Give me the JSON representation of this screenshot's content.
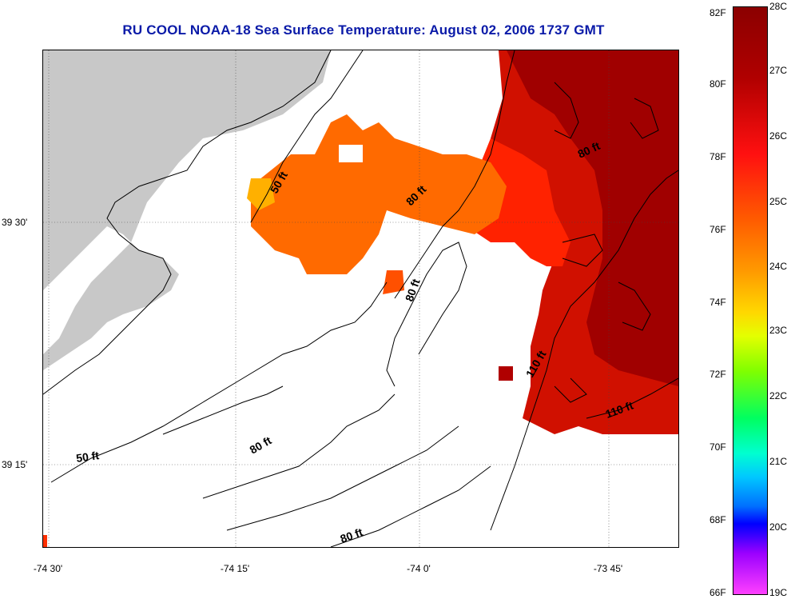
{
  "title": "RU COOL  NOAA-18  Sea Surface Temperature:  August 02, 2006 1737 GMT",
  "x_axis": {
    "ticks": [
      {
        "label": "-74 30'",
        "lon": -74.5
      },
      {
        "label": "-74 15'",
        "lon": -74.25
      },
      {
        "label": "-74 0'",
        "lon": -74.0
      },
      {
        "label": "-73 45'",
        "lon": -73.75
      }
    ]
  },
  "y_axis": {
    "ticks": [
      {
        "label": "39 30'",
        "lat": 39.5
      },
      {
        "label": "39 15'",
        "lat": 39.25
      }
    ]
  },
  "contour_labels": [
    {
      "text": "50 ft",
      "id": "a"
    },
    {
      "text": "80 ft",
      "id": "b"
    },
    {
      "text": "80 ft",
      "id": "c"
    },
    {
      "text": "80 ft",
      "id": "d"
    },
    {
      "text": "110 ft",
      "id": "e"
    },
    {
      "text": "110 ft",
      "id": "f"
    },
    {
      "text": "50 ft",
      "id": "g"
    },
    {
      "text": "80 ft",
      "id": "h"
    },
    {
      "text": "80 ft",
      "id": "i"
    }
  ],
  "colorbar": {
    "fahrenheit": [
      "82F",
      "80F",
      "78F",
      "76F",
      "74F",
      "72F",
      "70F",
      "68F",
      "66F"
    ],
    "celsius": [
      "28C",
      "27C",
      "26C",
      "25C",
      "24C",
      "23C",
      "22C",
      "21C",
      "20C",
      "19C"
    ],
    "colors": {
      "land": "#c8c8c8",
      "warm": "#8b0000",
      "hot": "#ff1a00",
      "mid": "#ff7000",
      "cool": "#ff00ff"
    }
  }
}
